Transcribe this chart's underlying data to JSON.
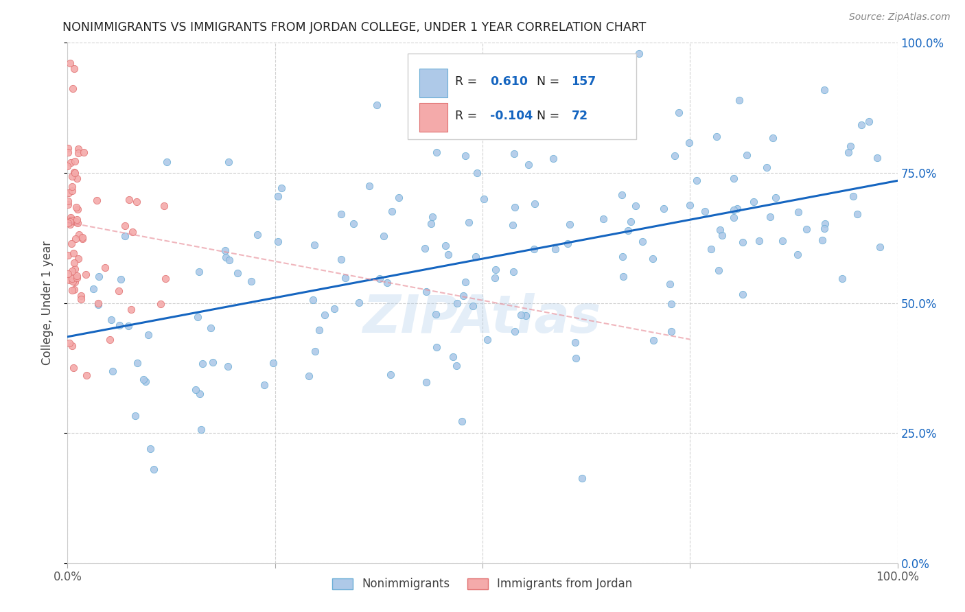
{
  "title": "NONIMMIGRANTS VS IMMIGRANTS FROM JORDAN COLLEGE, UNDER 1 YEAR CORRELATION CHART",
  "source_text": "Source: ZipAtlas.com",
  "ylabel": "College, Under 1 year",
  "xlim": [
    0.0,
    1.0
  ],
  "ylim": [
    0.0,
    1.0
  ],
  "xtick_labels": [
    "0.0%",
    "100.0%"
  ],
  "ytick_labels": [
    "0.0%",
    "25.0%",
    "50.0%",
    "75.0%",
    "100.0%"
  ],
  "ytick_positions": [
    0.0,
    0.25,
    0.5,
    0.75,
    1.0
  ],
  "xtick_positions": [
    0.0,
    1.0
  ],
  "legend_r_blue": "0.610",
  "legend_n_blue": "157",
  "legend_r_pink": "-0.104",
  "legend_n_pink": "72",
  "blue_face_color": "#aec9e8",
  "blue_edge_color": "#6baed6",
  "pink_face_color": "#f4aaaa",
  "pink_edge_color": "#e07070",
  "blue_line_color": "#1565c0",
  "pink_line_color": "#e8909a",
  "watermark": "ZIPAtlas",
  "background_color": "#ffffff",
  "grid_color": "#cccccc",
  "blue_N": 157,
  "pink_N": 72,
  "blue_line_x": [
    0.0,
    1.0
  ],
  "blue_line_y": [
    0.435,
    0.735
  ],
  "pink_line_x": [
    0.0,
    0.75
  ],
  "pink_line_y": [
    0.655,
    0.43
  ]
}
